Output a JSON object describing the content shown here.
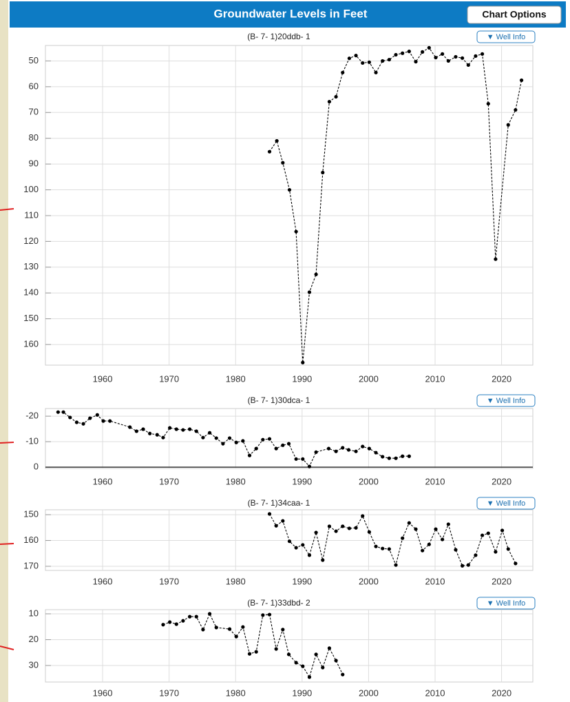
{
  "header": {
    "title": "Groundwater Levels in Feet",
    "button": "Chart Options"
  },
  "well_info_button": "▼ Well Info",
  "chart_data": [
    {
      "type": "line",
      "title": "(B- 7- 1)20ddb- 1",
      "color": "#000000",
      "inverted": true,
      "grid": true,
      "zero_line": false,
      "x": [
        1985.1,
        1986.2,
        1987.1,
        1988.1,
        1989.1,
        1990.1,
        1991.1,
        1992.1,
        1993.1,
        1994.1,
        1995.1,
        1996.1,
        1997.1,
        1998.1,
        1999.1,
        2000.1,
        2001.1,
        2002.1,
        2003.1,
        2004.1,
        2005.1,
        2006.1,
        2007.1,
        2008.1,
        2009.1,
        2010.1,
        2011.1,
        2012,
        2013.1,
        2014.1,
        2015,
        2016.1,
        2017.1,
        2018,
        2019.1,
        2021,
        2022.1,
        2023
      ],
      "values": [
        85.2,
        81,
        89.5,
        100,
        116.2,
        167,
        139.7,
        132.8,
        93.3,
        65.8,
        63.9,
        54.5,
        49,
        47.9,
        50.8,
        50.5,
        54.5,
        50,
        49.5,
        47.6,
        47,
        46.3,
        50.3,
        46.5,
        44.9,
        48.7,
        47.3,
        50,
        48.4,
        48.9,
        51.6,
        48.1,
        47.3,
        66.6,
        126.9,
        74.8,
        69,
        57.5
      ],
      "xlim": [
        1951.4,
        2024.7
      ],
      "xticks": [
        1960,
        1970,
        1980,
        1990,
        2000,
        2010,
        2020
      ],
      "ylim": [
        44,
        168
      ],
      "yticks": [
        50,
        60,
        70,
        80,
        90,
        100,
        110,
        120,
        130,
        140,
        150,
        160
      ]
    },
    {
      "type": "line",
      "title": "(B- 7- 1)30dca- 1",
      "color": "#000000",
      "inverted": true,
      "grid": true,
      "zero_line": true,
      "x": [
        1953.3,
        1954.1,
        1955.1,
        1956.1,
        1957.1,
        1958.1,
        1959.2,
        1960.1,
        1961.1,
        1964.1,
        1965.1,
        1966.1,
        1967.1,
        1968.2,
        1969.1,
        1970.1,
        1971.1,
        1972.1,
        1973.1,
        1974.1,
        1975.1,
        1976.1,
        1977.1,
        1978.1,
        1979.1,
        1980.1,
        1981.1,
        1982.1,
        1983.1,
        1984.1,
        1985.1,
        1986.1,
        1987.1,
        1988,
        1989.1,
        1990.1,
        1991.1,
        1992.1,
        1994,
        1995.1,
        1996.1,
        1997,
        1998.1,
        1999.1,
        2000.1,
        2001.1,
        2002.1,
        2003.1,
        2004.1,
        2005.1,
        2006.1
      ],
      "values": [
        -21.6,
        -21.6,
        -19.5,
        -17.6,
        -17,
        -19.2,
        -20.5,
        -18.1,
        -18.1,
        -15.7,
        -14.1,
        -14.9,
        -13.2,
        -12.7,
        -11.6,
        -15.4,
        -14.9,
        -14.6,
        -14.9,
        -14.1,
        -11.6,
        -13.5,
        -11.4,
        -9.2,
        -11.4,
        -9.7,
        -10.3,
        -4.6,
        -7.3,
        -10.8,
        -11.1,
        -7.3,
        -8.6,
        -9.2,
        -3.2,
        -3.2,
        -0.3,
        -5.9,
        -7.3,
        -6.2,
        -7.6,
        -6.8,
        -6.2,
        -8.1,
        -7.3,
        -5.7,
        -4.1,
        -3.5,
        -3.5,
        -4.3,
        -4.3
      ],
      "xlim": [
        1951.4,
        2024.7
      ],
      "xticks": [
        1960,
        1970,
        1980,
        1990,
        2000,
        2010,
        2020
      ],
      "ylim": [
        -23,
        0.5
      ],
      "yticks": [
        -20,
        -10,
        0
      ]
    },
    {
      "type": "line",
      "title": "(B- 7- 1)34caa- 1",
      "color": "#000000",
      "inverted": true,
      "grid": true,
      "zero_line": false,
      "x": [
        1985.1,
        1986.1,
        1987.1,
        1988.1,
        1989.1,
        1990.1,
        1991.1,
        1992.1,
        1993.1,
        1994.1,
        1995.1,
        1996.1,
        1997.1,
        1998.1,
        1999.1,
        2000.1,
        2001.1,
        2002.1,
        2003.1,
        2004.1,
        2005.1,
        2006.1,
        2007.1,
        2008.1,
        2009.1,
        2010.1,
        2011.1,
        2012,
        2013.1,
        2014.1,
        2015,
        2016.1,
        2017.1,
        2018,
        2019.1,
        2020.1,
        2021,
        2022.1
      ],
      "values": [
        149.7,
        154.3,
        152.4,
        160.3,
        162.8,
        161.7,
        165.7,
        156.9,
        167.6,
        154.5,
        156.4,
        154.5,
        155.3,
        155.1,
        150.5,
        156.7,
        162.3,
        163.1,
        163.3,
        169.5,
        159.1,
        153.2,
        155.6,
        163.9,
        161.5,
        155.6,
        159.6,
        153.7,
        163.6,
        169.8,
        169.5,
        165.7,
        158,
        157.2,
        164.4,
        156.1,
        163.3,
        168.9
      ],
      "xlim": [
        1951.4,
        2024.7
      ],
      "xticks": [
        1960,
        1970,
        1980,
        1990,
        2000,
        2010,
        2020
      ],
      "ylim": [
        148.1,
        171.6
      ],
      "yticks": [
        150,
        160,
        170
      ]
    },
    {
      "type": "line",
      "title": "(B- 7- 1)33dbd- 2",
      "color": "#000000",
      "inverted": true,
      "grid": true,
      "zero_line": false,
      "x": [
        1969.1,
        1970.1,
        1971.1,
        1972.1,
        1973.1,
        1974.1,
        1975.1,
        1976.1,
        1977.1,
        1979.1,
        1980.1,
        1981.1,
        1982.1,
        1983.1,
        1984.1,
        1985.1,
        1986.1,
        1987.1,
        1988,
        1989.1,
        1990.1,
        1991.1,
        1992.1,
        1993.1,
        1994.1,
        1995.1,
        1996.1
      ],
      "values": [
        14.2,
        13.2,
        14,
        12.7,
        11.1,
        11.1,
        16.1,
        10,
        15.3,
        15.9,
        18.8,
        15.1,
        25.5,
        24.7,
        10.5,
        10.3,
        23.6,
        16.1,
        25.7,
        28.9,
        30.3,
        34.5,
        25.7,
        30.8,
        23.3,
        28.1,
        33.5
      ],
      "xlim": [
        1951.4,
        2024.7
      ],
      "xticks": [
        1960,
        1970,
        1980,
        1990,
        2000,
        2010,
        2020
      ],
      "ylim": [
        8.4,
        36.4
      ],
      "yticks": [
        10,
        20,
        30
      ]
    }
  ]
}
